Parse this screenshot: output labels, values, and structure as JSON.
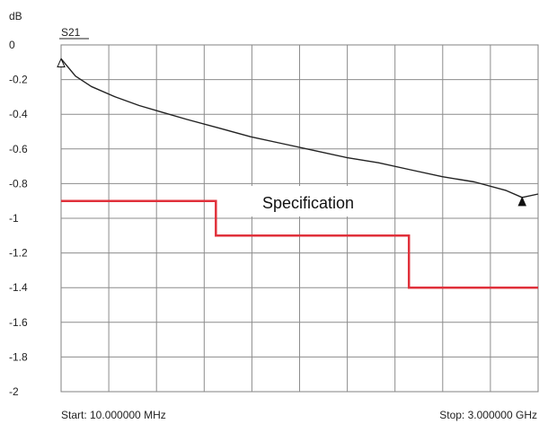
{
  "chart_data": {
    "type": "line",
    "y_unit": "dB",
    "trace_name": "S21",
    "ylim": [
      -2,
      0
    ],
    "y_ticks": [
      "0",
      "-0.2",
      "-0.4",
      "-0.6",
      "-0.8",
      "-1",
      "-1.2",
      "-1.4",
      "-1.6",
      "-1.8",
      "-2"
    ],
    "y_tick_values": [
      0,
      -0.2,
      -0.4,
      -0.6,
      -0.8,
      -1,
      -1.2,
      -1.4,
      -1.6,
      -1.8,
      -2
    ],
    "x_divisions": 10,
    "start_label": "Start: 10.000000 MHz",
    "stop_label": "Stop: 3.000000 GHz",
    "x_range_ghz": [
      0.01,
      3.0
    ],
    "grid": true,
    "series": [
      {
        "name": "S21",
        "x_ghz": [
          0.01,
          0.1,
          0.2,
          0.35,
          0.5,
          0.65,
          0.8,
          1.0,
          1.2,
          1.4,
          1.6,
          1.8,
          2.0,
          2.2,
          2.4,
          2.6,
          2.8,
          2.9,
          3.0
        ],
        "y_db": [
          -0.08,
          -0.18,
          -0.24,
          -0.3,
          -0.35,
          -0.39,
          -0.43,
          -0.48,
          -0.53,
          -0.57,
          -0.61,
          -0.65,
          -0.68,
          -0.72,
          -0.76,
          -0.79,
          -0.84,
          -0.88,
          -0.86
        ],
        "color": "#222222"
      },
      {
        "name": "Specification",
        "x_ghz": [
          0.01,
          0.98,
          0.98,
          2.19,
          2.19,
          3.0
        ],
        "y_db": [
          -0.9,
          -0.9,
          -1.1,
          -1.1,
          -1.4,
          -1.4
        ],
        "color": "#e0303a"
      }
    ],
    "annotations": [
      {
        "text": "Specification"
      }
    ],
    "markers": [
      {
        "x_ghz": 0.01,
        "y_db": -0.08
      },
      {
        "x_ghz": 2.9,
        "y_db": -0.88
      }
    ]
  }
}
